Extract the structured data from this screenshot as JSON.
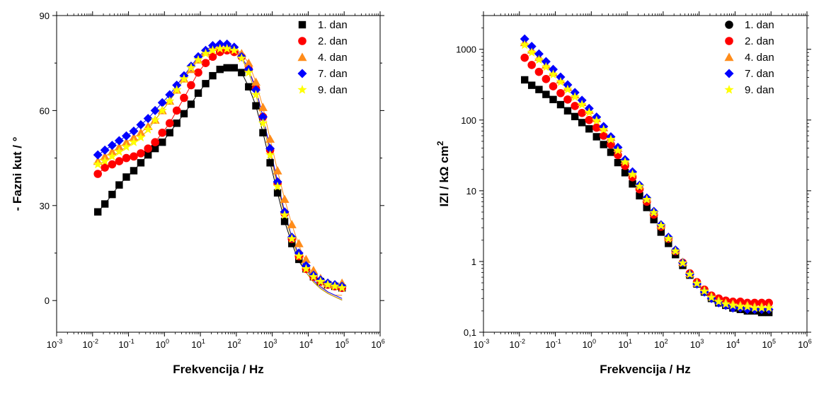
{
  "chart_data": [
    {
      "type": "scatter",
      "xlabel": "Frekvencija / Hz",
      "ylabel": "- Fazni kut / °",
      "xscale": "log",
      "xlim": [
        0.001,
        1000000
      ],
      "ylim": [
        -10,
        90
      ],
      "yticks": [
        0,
        30,
        60,
        90
      ],
      "xtick_labels": [
        "10-3",
        "10-2",
        "10-1",
        "100",
        "101",
        "102",
        "103",
        "104",
        "105",
        "106"
      ],
      "fit_lines": true,
      "legend_position": "top-right",
      "x": [
        0.014,
        0.022,
        0.035,
        0.055,
        0.087,
        0.14,
        0.22,
        0.35,
        0.55,
        0.87,
        1.4,
        2.2,
        3.5,
        5.5,
        8.7,
        14,
        22,
        35,
        55,
        87,
        140,
        220,
        350,
        550,
        870,
        1400,
        2200,
        3500,
        5500,
        8700,
        14000,
        22000,
        35000,
        55000,
        87000
      ],
      "series": [
        {
          "name": "1. dan",
          "marker": "square",
          "color": "#000000",
          "values": [
            28,
            30.5,
            33.5,
            36.5,
            39,
            41,
            43.5,
            46,
            48,
            50,
            53,
            56,
            59,
            62,
            65.5,
            68.5,
            71,
            73,
            73.5,
            73.5,
            72,
            67.5,
            61.5,
            53,
            43.5,
            34,
            25,
            18,
            13,
            10,
            7.5,
            6,
            5,
            4.5,
            4
          ]
        },
        {
          "name": "2. dan",
          "marker": "circle",
          "color": "#ff0000",
          "values": [
            40,
            42,
            43,
            44,
            45,
            45.5,
            46.5,
            48,
            50,
            53,
            56,
            60,
            64,
            68,
            72,
            75,
            77,
            78.5,
            79,
            78.5,
            77,
            73,
            67,
            58,
            47.5,
            37,
            27.5,
            19.5,
            14,
            10,
            7.5,
            6,
            5,
            4.5,
            4
          ]
        },
        {
          "name": "4. dan",
          "marker": "triangle",
          "color": "#ff8c1a",
          "values": [
            44,
            45.5,
            47,
            48.5,
            50,
            51.5,
            53,
            55,
            57,
            60,
            63,
            66.5,
            70,
            73,
            76,
            78.5,
            80,
            80.5,
            80.5,
            80,
            78,
            75,
            69,
            61,
            51,
            41,
            32,
            24,
            18,
            13,
            9.5,
            7,
            5.5,
            5,
            5.5
          ]
        },
        {
          "name": "7. dan",
          "marker": "diamond",
          "color": "#0000ff",
          "values": [
            46,
            47.5,
            49,
            50.5,
            52,
            53.5,
            55.5,
            57.5,
            60,
            62.5,
            65,
            68,
            71,
            74,
            77,
            79,
            80.5,
            81,
            81,
            80,
            77,
            73,
            66.5,
            58,
            48,
            37.5,
            28,
            20,
            15,
            11,
            8,
            6.5,
            5.5,
            5,
            4.5
          ]
        },
        {
          "name": "9. dan",
          "marker": "star",
          "color": "#ffff00",
          "values": [
            43,
            44,
            45.5,
            47,
            48.5,
            50,
            51.5,
            54,
            57,
            60,
            63,
            66.5,
            70,
            73.5,
            76,
            78,
            79,
            79.5,
            79.5,
            79,
            76.5,
            72,
            65,
            56,
            46,
            36,
            27,
            19.5,
            14,
            10,
            7.5,
            6,
            5,
            4.5,
            4
          ]
        }
      ]
    },
    {
      "type": "scatter",
      "xlabel": "Frekvencija / Hz",
      "ylabel": "IZI / kΩ cm",
      "ylabel_sup": "2",
      "xscale": "log",
      "yscale": "log",
      "xlim": [
        0.001,
        1000000
      ],
      "ylim": [
        0.1,
        3000
      ],
      "yticks": [
        0.1,
        1,
        10,
        100,
        1000
      ],
      "ytick_labels": [
        "0,1",
        "1",
        "10",
        "100",
        "1000"
      ],
      "xtick_labels": [
        "10-3",
        "10-2",
        "10-1",
        "100",
        "101",
        "102",
        "103",
        "104",
        "105",
        "106"
      ],
      "legend_position": "top-right",
      "x": [
        0.014,
        0.022,
        0.035,
        0.055,
        0.087,
        0.14,
        0.22,
        0.35,
        0.55,
        0.87,
        1.4,
        2.2,
        3.5,
        5.5,
        8.7,
        14,
        22,
        35,
        55,
        87,
        140,
        220,
        350,
        550,
        870,
        1400,
        2200,
        3500,
        5500,
        8700,
        14000,
        22000,
        35000,
        55000,
        87000
      ],
      "series": [
        {
          "name": "1. dan",
          "marker": "circle",
          "color": "#000000",
          "plot_marker": "square",
          "values": [
            370,
            310,
            270,
            230,
            195,
            165,
            135,
            112,
            92,
            75,
            58,
            45,
            35,
            25,
            18,
            12.5,
            8.5,
            5.8,
            3.9,
            2.6,
            1.8,
            1.25,
            0.88,
            0.64,
            0.48,
            0.37,
            0.3,
            0.26,
            0.24,
            0.22,
            0.21,
            0.2,
            0.2,
            0.19,
            0.19
          ]
        },
        {
          "name": "2. dan",
          "marker": "circle",
          "color": "#ff0000",
          "values": [
            760,
            600,
            480,
            380,
            300,
            240,
            195,
            158,
            126,
            100,
            78,
            60,
            45,
            32,
            22.5,
            15.5,
            10.5,
            7,
            4.6,
            3.1,
            2.1,
            1.4,
            0.96,
            0.68,
            0.51,
            0.4,
            0.33,
            0.3,
            0.28,
            0.27,
            0.27,
            0.26,
            0.26,
            0.26,
            0.26
          ]
        },
        {
          "name": "4. dan",
          "marker": "triangle",
          "color": "#ff8c1a",
          "values": [
            1250,
            980,
            770,
            600,
            470,
            370,
            290,
            228,
            178,
            138,
            105,
            78,
            57,
            40,
            27,
            18,
            12,
            7.8,
            5.1,
            3.3,
            2.2,
            1.45,
            0.98,
            0.68,
            0.5,
            0.39,
            0.32,
            0.28,
            0.26,
            0.25,
            0.24,
            0.24,
            0.23,
            0.23,
            0.23
          ]
        },
        {
          "name": "7. dan",
          "marker": "diamond",
          "color": "#0000ff",
          "values": [
            1400,
            1100,
            860,
            670,
            520,
            405,
            315,
            245,
            190,
            146,
            110,
            81,
            58,
            41,
            27.5,
            18.5,
            12,
            7.9,
            5.1,
            3.3,
            2.2,
            1.45,
            0.96,
            0.66,
            0.48,
            0.37,
            0.3,
            0.26,
            0.24,
            0.22,
            0.22,
            0.21,
            0.21,
            0.21,
            0.21
          ]
        },
        {
          "name": "9. dan",
          "marker": "star",
          "color": "#ffff00",
          "values": [
            1150,
            900,
            710,
            560,
            440,
            345,
            270,
            212,
            165,
            128,
            98,
            73,
            53,
            37,
            25.5,
            17,
            11.5,
            7.5,
            4.9,
            3.2,
            2.1,
            1.4,
            0.95,
            0.66,
            0.49,
            0.38,
            0.31,
            0.27,
            0.25,
            0.24,
            0.23,
            0.23,
            0.22,
            0.22,
            0.22
          ]
        }
      ]
    }
  ]
}
